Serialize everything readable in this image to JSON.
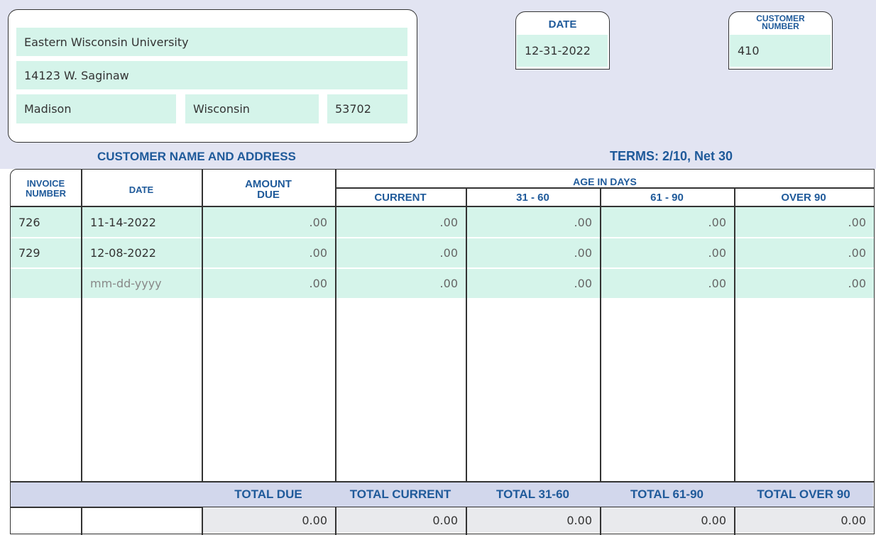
{
  "address": {
    "name": "Eastern Wisconsin University",
    "street": "14123 W. Saginaw",
    "city": "Madison",
    "state": "Wisconsin",
    "zip": "53702"
  },
  "header": {
    "date_label": "DATE",
    "date_value": "12-31-2022",
    "customer_number_label_line1": "CUSTOMER",
    "customer_number_label_line2": "NUMBER",
    "customer_number_value": "410",
    "customer_name_address_label": "CUSTOMER NAME AND ADDRESS",
    "terms_label": "TERMS:  2/10, Net 30"
  },
  "table": {
    "columns": {
      "invoice_line1": "INVOICE",
      "invoice_line2": "NUMBER",
      "date": "DATE",
      "amount_line1": "AMOUNT",
      "amount_line2": "DUE",
      "age_group": "AGE IN DAYS",
      "current": "CURRENT",
      "d31_60": "31 - 60",
      "d61_90": "61 - 90",
      "over90": "OVER 90"
    },
    "rows": [
      {
        "invoice": "726",
        "date": "11-14-2022",
        "amount": ".00",
        "current": ".00",
        "d31_60": ".00",
        "d61_90": ".00",
        "over90": ".00"
      },
      {
        "invoice": "729",
        "date": "12-08-2022",
        "amount": ".00",
        "current": ".00",
        "d31_60": ".00",
        "d61_90": ".00",
        "over90": ".00"
      },
      {
        "invoice": "",
        "date_placeholder": "mm-dd-yyyy",
        "amount": ".00",
        "current": ".00",
        "d31_60": ".00",
        "d61_90": ".00",
        "over90": ".00"
      }
    ],
    "totals": {
      "total_due_label": "TOTAL DUE",
      "total_current_label": "TOTAL CURRENT",
      "total_31_60_label": "TOTAL 31-60",
      "total_61_90_label": "TOTAL 61-90",
      "total_over_90_label": "TOTAL OVER 90",
      "total_due": "0.00",
      "total_current": "0.00",
      "total_31_60": "0.00",
      "total_61_90": "0.00",
      "total_over_90": "0.00"
    }
  },
  "colors": {
    "band": "#e2e4f2",
    "field": "#d5f4ea",
    "label_blue": "#1f5a9a",
    "total_band": "#d2d7ec",
    "total_cell": "#e9eaed"
  }
}
